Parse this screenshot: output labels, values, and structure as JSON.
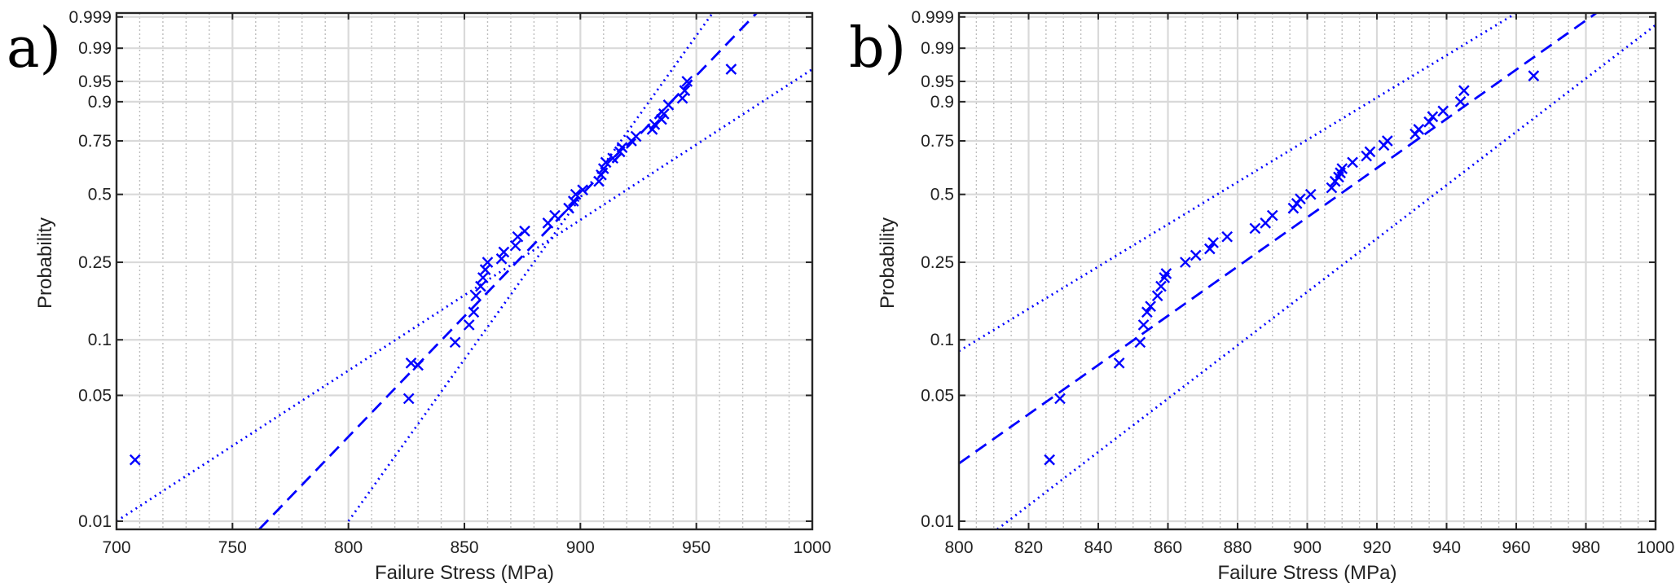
{
  "chart_data": [
    {
      "type": "scatter",
      "panel_label": "a)",
      "xlabel": "Failure Stress (MPa)",
      "ylabel": "Probability",
      "y_scale": "weibull-probability",
      "xlim": [
        700,
        1000
      ],
      "x_ticks": [
        700,
        750,
        800,
        850,
        900,
        950,
        1000
      ],
      "x_minor_step": 10,
      "ylim": [
        0.009,
        0.9993
      ],
      "y_ticks": [
        0.01,
        0.05,
        0.1,
        0.25,
        0.5,
        0.75,
        0.9,
        0.95,
        0.99,
        0.999
      ],
      "y_tick_labels": [
        "0.01",
        "0.05",
        "0.1",
        "0.25",
        "0.5",
        "0.75",
        "0.9",
        "0.95",
        "0.99",
        "0.999"
      ],
      "grid": true,
      "color": "#0000ff",
      "points": [
        [
          708,
          0.022
        ],
        [
          826,
          0.048
        ],
        [
          827,
          0.075
        ],
        [
          830,
          0.073
        ],
        [
          846,
          0.097
        ],
        [
          852,
          0.12
        ],
        [
          854,
          0.14
        ],
        [
          855,
          0.17
        ],
        [
          857,
          0.19
        ],
        [
          858,
          0.21
        ],
        [
          859,
          0.23
        ],
        [
          860,
          0.25
        ],
        [
          866,
          0.26
        ],
        [
          867,
          0.28
        ],
        [
          872,
          0.3
        ],
        [
          873,
          0.33
        ],
        [
          876,
          0.35
        ],
        [
          886,
          0.38
        ],
        [
          889,
          0.41
        ],
        [
          895,
          0.44
        ],
        [
          897,
          0.47
        ],
        [
          898,
          0.5
        ],
        [
          901,
          0.52
        ],
        [
          908,
          0.56
        ],
        [
          909,
          0.59
        ],
        [
          910,
          0.62
        ],
        [
          911,
          0.65
        ],
        [
          914,
          0.67
        ],
        [
          917,
          0.7
        ],
        [
          918,
          0.72
        ],
        [
          922,
          0.75
        ],
        [
          924,
          0.77
        ],
        [
          931,
          0.8
        ],
        [
          932,
          0.82
        ],
        [
          935,
          0.84
        ],
        [
          936,
          0.86
        ],
        [
          938,
          0.89
        ],
        [
          944,
          0.91
        ],
        [
          945,
          0.93
        ],
        [
          946,
          0.95
        ],
        [
          965,
          0.97
        ]
      ],
      "fit_line": [
        [
          761.5,
          0.009
        ],
        [
          976,
          0.9993
        ]
      ],
      "lower_bound": [
        [
          700,
          0.01
        ],
        [
          1000,
          0.97
        ]
      ],
      "upper_bound": [
        [
          800,
          0.01
        ],
        [
          957,
          0.9993
        ]
      ]
    },
    {
      "type": "scatter",
      "panel_label": "b)",
      "xlabel": "Failure Stress (MPa)",
      "ylabel": "Probability",
      "y_scale": "weibull-probability",
      "xlim": [
        800,
        1000
      ],
      "x_ticks": [
        800,
        820,
        840,
        860,
        880,
        900,
        920,
        940,
        960,
        980,
        1000
      ],
      "x_minor_step": 5,
      "ylim": [
        0.009,
        0.9993
      ],
      "y_ticks": [
        0.01,
        0.05,
        0.1,
        0.25,
        0.5,
        0.75,
        0.9,
        0.95,
        0.99,
        0.999
      ],
      "y_tick_labels": [
        "0.01",
        "0.05",
        "0.1",
        "0.25",
        "0.5",
        "0.75",
        "0.9",
        "0.95",
        "0.99",
        "0.999"
      ],
      "grid": true,
      "color": "#0000ff",
      "points": [
        [
          826,
          0.022
        ],
        [
          829,
          0.048
        ],
        [
          846,
          0.075
        ],
        [
          852,
          0.097
        ],
        [
          853,
          0.12
        ],
        [
          854,
          0.14
        ],
        [
          855,
          0.15
        ],
        [
          857,
          0.17
        ],
        [
          858,
          0.19
        ],
        [
          859,
          0.21
        ],
        [
          859.5,
          0.22
        ],
        [
          865,
          0.25
        ],
        [
          868,
          0.27
        ],
        [
          872,
          0.29
        ],
        [
          873,
          0.31
        ],
        [
          877,
          0.33
        ],
        [
          885,
          0.36
        ],
        [
          888,
          0.38
        ],
        [
          890,
          0.41
        ],
        [
          896,
          0.44
        ],
        [
          897,
          0.46
        ],
        [
          898,
          0.48
        ],
        [
          901,
          0.5
        ],
        [
          907,
          0.53
        ],
        [
          908,
          0.56
        ],
        [
          909,
          0.58
        ],
        [
          909.5,
          0.6
        ],
        [
          910,
          0.62
        ],
        [
          913,
          0.65
        ],
        [
          917,
          0.68
        ],
        [
          918,
          0.7
        ],
        [
          922,
          0.73
        ],
        [
          923,
          0.75
        ],
        [
          931,
          0.78
        ],
        [
          932,
          0.8
        ],
        [
          935,
          0.83
        ],
        [
          936,
          0.85
        ],
        [
          939,
          0.87
        ],
        [
          944,
          0.9
        ],
        [
          945,
          0.93
        ],
        [
          965,
          0.96
        ]
      ],
      "fit_line": [
        [
          800,
          0.021
        ],
        [
          983,
          0.9993
        ]
      ],
      "lower_bound": [
        [
          811,
          0.009
        ],
        [
          1000,
          0.998
        ]
      ],
      "upper_bound": [
        [
          800,
          0.087
        ],
        [
          960,
          0.9993
        ]
      ]
    }
  ]
}
